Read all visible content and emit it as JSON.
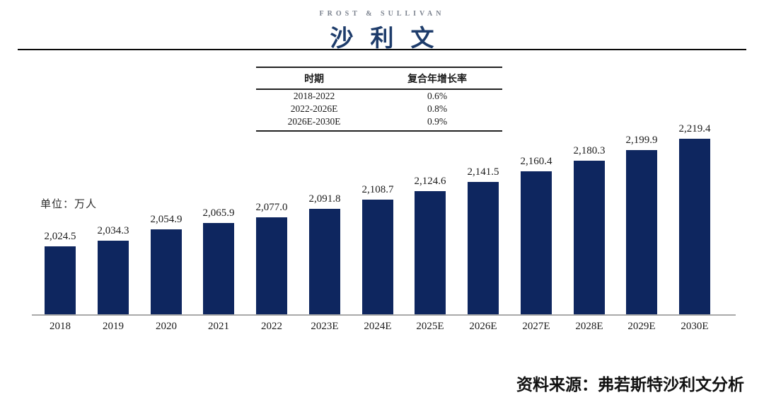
{
  "logo": {
    "en": "FROST & SULLIVAN",
    "zh": "沙利文"
  },
  "cagr_table": {
    "headers": [
      "时期",
      "复合年增长率"
    ],
    "rows": [
      [
        "2018-2022",
        "0.6%"
      ],
      [
        "2022-2026E",
        "0.8%"
      ],
      [
        "2026E-2030E",
        "0.9%"
      ]
    ]
  },
  "unit_label": "单位：万人",
  "source": "资料来源：弗若斯特沙利文分析",
  "colors": {
    "bar": "#0e265f",
    "logo_navy": "#1e3c6b",
    "logo_gray": "#7b828e",
    "axis_line": "#a9a9a9",
    "divider": "#0a0a0a"
  },
  "chart_data": {
    "type": "bar",
    "title": "",
    "xlabel": "",
    "ylabel": "单位：万人",
    "categories": [
      "2018",
      "2019",
      "2020",
      "2021",
      "2022",
      "2023E",
      "2024E",
      "2025E",
      "2026E",
      "2027E",
      "2028E",
      "2029E",
      "2030E"
    ],
    "values": [
      2024.5,
      2034.3,
      2054.9,
      2065.9,
      2077.0,
      2091.8,
      2108.7,
      2124.6,
      2141.5,
      2160.4,
      2180.3,
      2199.9,
      2219.4
    ],
    "value_labels": [
      "2,024.5",
      "2,034.3",
      "2,054.9",
      "2,065.9",
      "2,077.0",
      "2,091.8",
      "2,108.7",
      "2,124.6",
      "2,141.5",
      "2,160.4",
      "2,180.3",
      "2,199.9",
      "2,219.4"
    ],
    "ylim": [
      1900,
      2250
    ],
    "grid": false,
    "legend": null,
    "bar_color": "#0e265f",
    "annotations": {
      "cagr_2018_2022": "0.6%",
      "cagr_2022_2026E": "0.8%",
      "cagr_2026E_2030E": "0.9%"
    }
  }
}
